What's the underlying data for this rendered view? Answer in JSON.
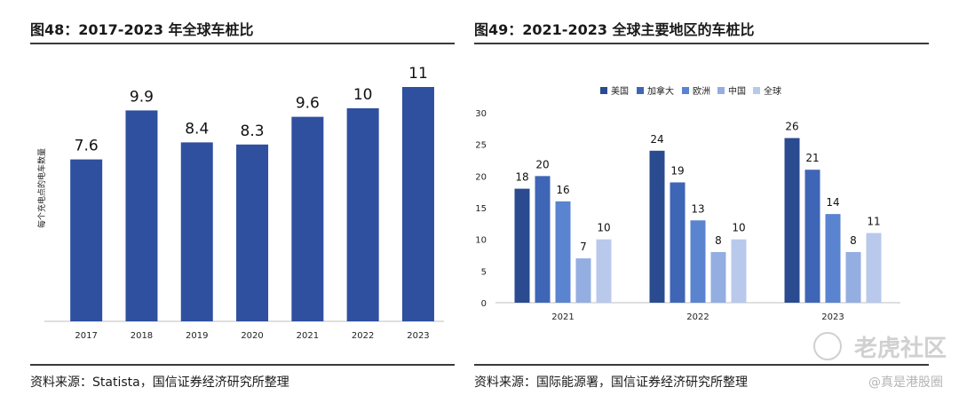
{
  "charts": {
    "left": {
      "title": "图48：2017-2023 年全球车桩比",
      "source": "资料来源：Statista，国信证券经济研究所整理"
    },
    "right": {
      "title": "图49：2021-2023 全球主要地区的车桩比",
      "source": "资料来源：国际能源署，国信证券经济研究所整理"
    }
  },
  "watermark": {
    "brand": "老虎社区",
    "handle": "@真是港股圈"
  },
  "colors": {
    "left_bar": "#2f4f9f",
    "series": [
      "#2a4b8f",
      "#3f66b6",
      "#5a83d0",
      "#94aee2",
      "#b9c9ec"
    ]
  },
  "chart_data": [
    {
      "type": "bar",
      "categories": [
        "2017",
        "2018",
        "2019",
        "2020",
        "2021",
        "2022",
        "2023"
      ],
      "values": [
        7.6,
        9.9,
        8.4,
        8.3,
        9.6,
        10,
        11
      ],
      "data_labels": [
        "7.6",
        "9.9",
        "8.4",
        "8.3",
        "9.6",
        "10",
        "11"
      ],
      "title": "",
      "xlabel": "",
      "ylabel": "每个充电点的电车数量",
      "ylim": [
        0,
        11.5
      ],
      "grid": false,
      "legend": "none"
    },
    {
      "type": "bar",
      "categories": [
        "2021",
        "2022",
        "2023"
      ],
      "series": [
        {
          "name": "美国",
          "values": [
            18,
            24,
            26
          ]
        },
        {
          "name": "加拿大",
          "values": [
            20,
            19,
            21
          ]
        },
        {
          "name": "欧洲",
          "values": [
            16,
            13,
            14
          ]
        },
        {
          "name": "中国",
          "values": [
            7,
            8,
            8
          ]
        },
        {
          "name": "全球",
          "values": [
            10,
            10,
            11
          ]
        }
      ],
      "yticks": [
        "0",
        "5",
        "10",
        "15",
        "20",
        "25",
        "30"
      ],
      "title": "",
      "xlabel": "",
      "ylabel": "",
      "ylim": [
        0,
        30
      ],
      "grid": false,
      "legend": "top"
    }
  ]
}
